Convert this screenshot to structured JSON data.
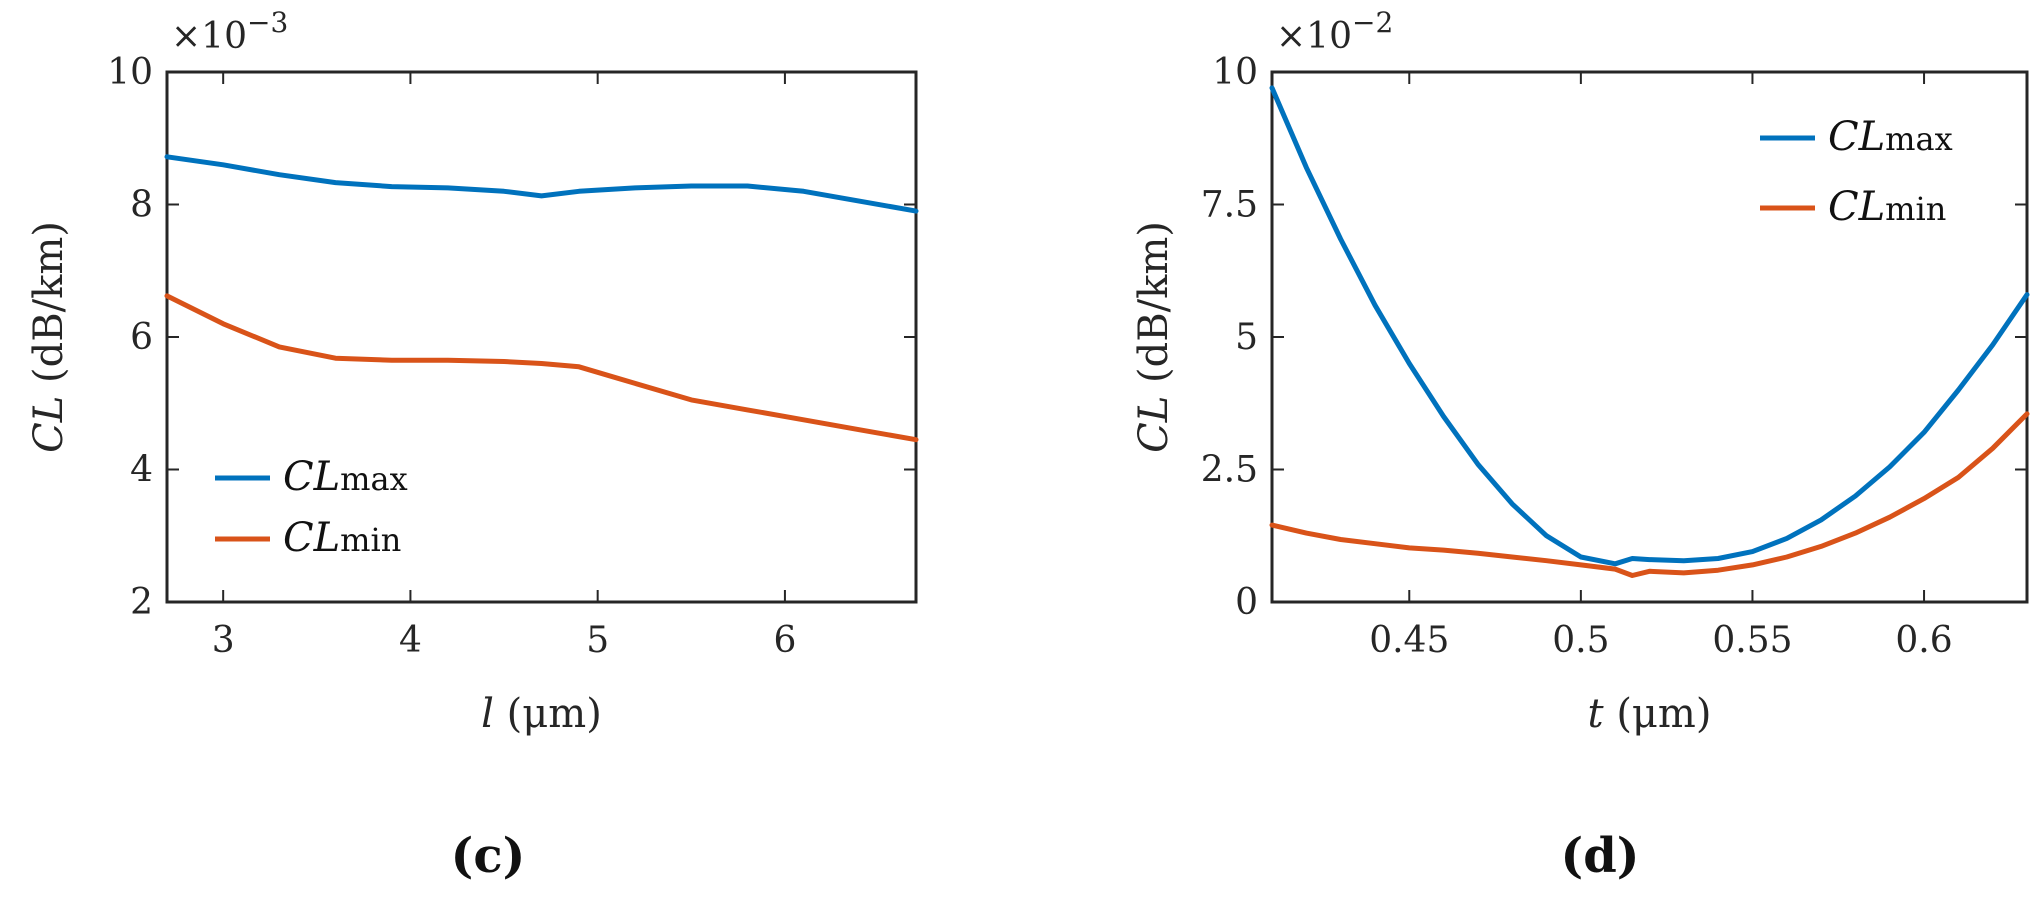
{
  "chart_data": [
    {
      "type": "line",
      "panel_label": "(c)",
      "xlabel_var": "l",
      "xlabel_unit": "(μm)",
      "ylabel_var": "CL",
      "ylabel_unit": "(dB/km)",
      "y_multiplier": "×10",
      "y_exponent": "−3",
      "xlim": [
        2.7,
        6.7
      ],
      "ylim": [
        2,
        10
      ],
      "xticks": [
        3,
        4,
        5,
        6
      ],
      "xtick_labels": [
        "3",
        "4",
        "5",
        "6"
      ],
      "yticks": [
        2,
        4,
        6,
        8,
        10
      ],
      "ytick_labels": [
        "2",
        "4",
        "6",
        "8",
        "10"
      ],
      "legend_position": "bottom-left",
      "series": [
        {
          "name": "CLmax",
          "label_main": "CL",
          "label_sub": "max",
          "color": "#0072BD",
          "x": [
            2.7,
            3.0,
            3.3,
            3.6,
            3.9,
            4.2,
            4.5,
            4.7,
            4.9,
            5.2,
            5.5,
            5.8,
            6.1,
            6.4,
            6.7
          ],
          "y": [
            8.72,
            8.6,
            8.45,
            8.33,
            8.27,
            8.25,
            8.2,
            8.13,
            8.2,
            8.25,
            8.28,
            8.28,
            8.2,
            8.05,
            7.9
          ]
        },
        {
          "name": "CLmin",
          "label_main": "CL",
          "label_sub": "min",
          "color": "#D95319",
          "x": [
            2.7,
            3.0,
            3.3,
            3.6,
            3.9,
            4.2,
            4.5,
            4.7,
            4.9,
            5.2,
            5.5,
            5.8,
            6.1,
            6.4,
            6.7
          ],
          "y": [
            6.62,
            6.2,
            5.85,
            5.68,
            5.65,
            5.65,
            5.63,
            5.6,
            5.55,
            5.3,
            5.05,
            4.9,
            4.75,
            4.6,
            4.45
          ]
        }
      ]
    },
    {
      "type": "line",
      "panel_label": "(d)",
      "xlabel_var": "t",
      "xlabel_unit": "(μm)",
      "ylabel_var": "CL",
      "ylabel_unit": "(dB/km)",
      "y_multiplier": "×10",
      "y_exponent": "−2",
      "xlim": [
        0.41,
        0.63
      ],
      "ylim": [
        0,
        10
      ],
      "xticks": [
        0.45,
        0.5,
        0.55,
        0.6
      ],
      "xtick_labels": [
        "0.45",
        "0.5",
        "0.55",
        "0.6"
      ],
      "yticks": [
        0,
        2.5,
        5,
        7.5,
        10
      ],
      "ytick_labels": [
        "0",
        "2.5",
        "5",
        "7.5",
        "10"
      ],
      "legend_position": "top-right",
      "series": [
        {
          "name": "CLmax",
          "label_main": "CL",
          "label_sub": "max",
          "color": "#0072BD",
          "x": [
            0.41,
            0.42,
            0.43,
            0.44,
            0.45,
            0.46,
            0.47,
            0.48,
            0.49,
            0.5,
            0.51,
            0.515,
            0.52,
            0.53,
            0.54,
            0.55,
            0.56,
            0.57,
            0.58,
            0.59,
            0.6,
            0.61,
            0.62,
            0.63
          ],
          "y": [
            9.7,
            8.2,
            6.85,
            5.6,
            4.5,
            3.5,
            2.6,
            1.85,
            1.25,
            0.85,
            0.72,
            0.82,
            0.8,
            0.78,
            0.82,
            0.95,
            1.2,
            1.55,
            2.0,
            2.55,
            3.2,
            4.0,
            4.85,
            5.8
          ]
        },
        {
          "name": "CLmin",
          "label_main": "CL",
          "label_sub": "min",
          "color": "#D95319",
          "x": [
            0.41,
            0.42,
            0.43,
            0.44,
            0.45,
            0.46,
            0.47,
            0.48,
            0.49,
            0.5,
            0.51,
            0.515,
            0.52,
            0.53,
            0.54,
            0.55,
            0.56,
            0.57,
            0.58,
            0.59,
            0.6,
            0.61,
            0.62,
            0.63
          ],
          "y": [
            1.45,
            1.3,
            1.18,
            1.1,
            1.02,
            0.98,
            0.92,
            0.85,
            0.78,
            0.7,
            0.62,
            0.5,
            0.58,
            0.55,
            0.6,
            0.7,
            0.85,
            1.05,
            1.3,
            1.6,
            1.95,
            2.35,
            2.9,
            3.55
          ]
        }
      ]
    }
  ]
}
